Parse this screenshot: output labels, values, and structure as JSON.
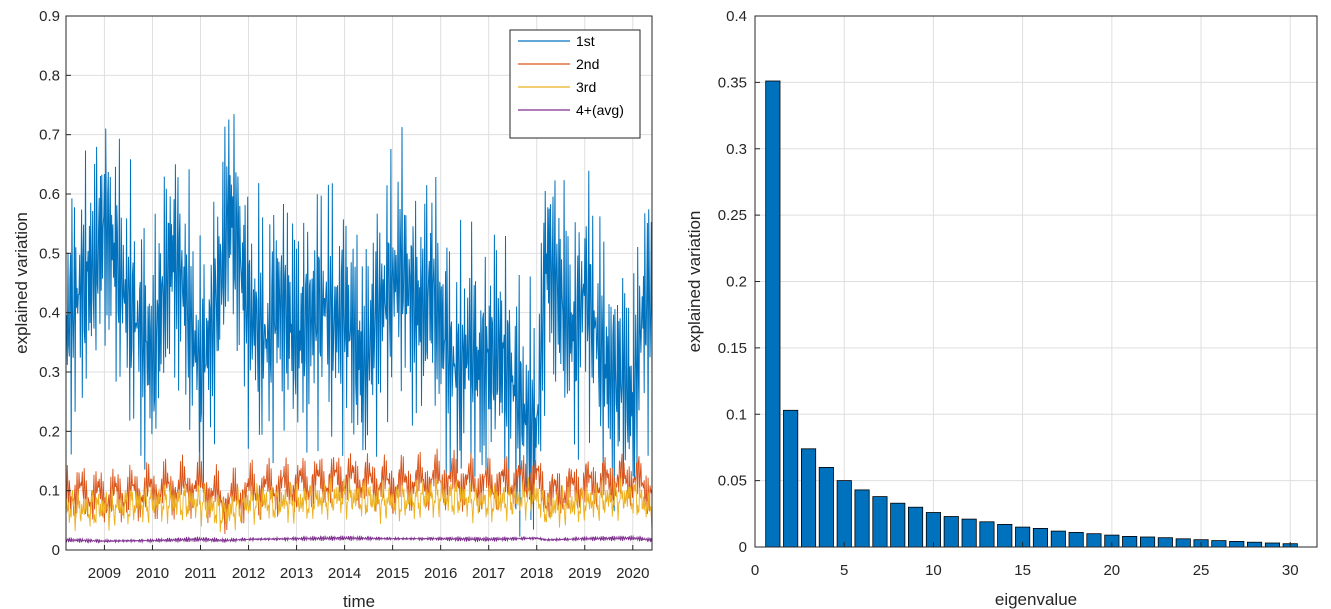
{
  "chart_data": [
    {
      "type": "line",
      "title": "",
      "xlabel": "time",
      "ylabel": "explained variation",
      "xlim": [
        2008.2,
        2020.4
      ],
      "ylim": [
        0,
        0.9
      ],
      "grid": true,
      "legend_position": "top-right",
      "xticks": [
        {
          "value": 2009,
          "label": "2009"
        },
        {
          "value": 2010,
          "label": "2010"
        },
        {
          "value": 2011,
          "label": "2011"
        },
        {
          "value": 2012,
          "label": "2012"
        },
        {
          "value": 2013,
          "label": "2013"
        },
        {
          "value": 2014,
          "label": "2014"
        },
        {
          "value": 2015,
          "label": "2015"
        },
        {
          "value": 2016,
          "label": "2016"
        },
        {
          "value": 2017,
          "label": "2017"
        },
        {
          "value": 2018,
          "label": "2018"
        },
        {
          "value": 2019,
          "label": "2019"
        },
        {
          "value": 2020,
          "label": "2020"
        }
      ],
      "yticks": [
        {
          "value": 0,
          "label": "0"
        },
        {
          "value": 0.1,
          "label": "0.1"
        },
        {
          "value": 0.2,
          "label": "0.2"
        },
        {
          "value": 0.3,
          "label": "0.3"
        },
        {
          "value": 0.4,
          "label": "0.4"
        },
        {
          "value": 0.5,
          "label": "0.5"
        },
        {
          "value": 0.6,
          "label": "0.6"
        },
        {
          "value": 0.7,
          "label": "0.7"
        },
        {
          "value": 0.8,
          "label": "0.8"
        },
        {
          "value": 0.9,
          "label": "0.9"
        }
      ],
      "series": [
        {
          "name": "1st",
          "color": "#0072BD",
          "x": [
            2008.2,
            2008.4,
            2008.6,
            2008.8,
            2009.0,
            2009.2,
            2009.4,
            2009.6,
            2009.8,
            2010.0,
            2010.2,
            2010.4,
            2010.6,
            2010.8,
            2011.0,
            2011.2,
            2011.4,
            2011.6,
            2011.8,
            2012.0,
            2012.2,
            2012.4,
            2012.6,
            2012.8,
            2013.0,
            2013.2,
            2013.4,
            2013.6,
            2013.8,
            2014.0,
            2014.2,
            2014.4,
            2014.6,
            2014.8,
            2015.0,
            2015.2,
            2015.4,
            2015.6,
            2015.8,
            2016.0,
            2016.2,
            2016.4,
            2016.6,
            2016.8,
            2017.0,
            2017.2,
            2017.4,
            2017.6,
            2017.8,
            2018.0,
            2018.2,
            2018.4,
            2018.6,
            2018.8,
            2019.0,
            2019.2,
            2019.4,
            2019.6,
            2019.8,
            2020.0,
            2020.2,
            2020.4
          ],
          "values": [
            0.38,
            0.42,
            0.45,
            0.48,
            0.55,
            0.5,
            0.44,
            0.4,
            0.36,
            0.32,
            0.42,
            0.5,
            0.46,
            0.38,
            0.3,
            0.36,
            0.45,
            0.58,
            0.5,
            0.4,
            0.38,
            0.35,
            0.42,
            0.4,
            0.36,
            0.38,
            0.4,
            0.42,
            0.38,
            0.4,
            0.36,
            0.3,
            0.38,
            0.42,
            0.45,
            0.48,
            0.42,
            0.4,
            0.45,
            0.38,
            0.32,
            0.3,
            0.35,
            0.3,
            0.32,
            0.34,
            0.3,
            0.26,
            0.22,
            0.2,
            0.5,
            0.45,
            0.4,
            0.35,
            0.45,
            0.38,
            0.32,
            0.28,
            0.3,
            0.24,
            0.4,
            0.42
          ]
        },
        {
          "name": "2nd",
          "color": "#D95319",
          "x": [
            2008.2,
            2009.0,
            2010.0,
            2011.0,
            2011.5,
            2012.0,
            2013.0,
            2014.0,
            2015.0,
            2016.0,
            2017.0,
            2018.0,
            2018.2,
            2019.0,
            2020.0,
            2020.4
          ],
          "values": [
            0.1,
            0.09,
            0.1,
            0.11,
            0.08,
            0.1,
            0.11,
            0.12,
            0.11,
            0.12,
            0.11,
            0.12,
            0.09,
            0.11,
            0.12,
            0.1
          ]
        },
        {
          "name": "3rd",
          "color": "#EDB120",
          "x": [
            2008.2,
            2009.0,
            2010.0,
            2011.0,
            2011.5,
            2012.0,
            2013.0,
            2014.0,
            2015.0,
            2016.0,
            2017.0,
            2018.0,
            2018.2,
            2019.0,
            2020.0,
            2020.4
          ],
          "values": [
            0.07,
            0.07,
            0.08,
            0.08,
            0.06,
            0.08,
            0.08,
            0.09,
            0.08,
            0.09,
            0.08,
            0.09,
            0.07,
            0.08,
            0.09,
            0.07
          ]
        },
        {
          "name": "4+(avg)",
          "color": "#7E2F8E",
          "x": [
            2008.2,
            2009.0,
            2010.0,
            2011.0,
            2011.5,
            2012.0,
            2013.0,
            2014.0,
            2015.0,
            2016.0,
            2017.0,
            2018.0,
            2018.2,
            2019.0,
            2020.0,
            2020.4
          ],
          "values": [
            0.017,
            0.015,
            0.016,
            0.018,
            0.016,
            0.018,
            0.019,
            0.02,
            0.019,
            0.019,
            0.018,
            0.02,
            0.017,
            0.019,
            0.02,
            0.017
          ]
        }
      ]
    },
    {
      "type": "bar",
      "title": "",
      "xlabel": "eigenvalue",
      "ylabel": "explained variation",
      "xlim": [
        0,
        31.5
      ],
      "ylim": [
        0,
        0.4
      ],
      "grid": true,
      "bar_color": "#0072BD",
      "xticks": [
        {
          "value": 0,
          "label": "0"
        },
        {
          "value": 5,
          "label": "5"
        },
        {
          "value": 10,
          "label": "10"
        },
        {
          "value": 15,
          "label": "15"
        },
        {
          "value": 20,
          "label": "20"
        },
        {
          "value": 25,
          "label": "25"
        },
        {
          "value": 30,
          "label": "30"
        }
      ],
      "yticks": [
        {
          "value": 0,
          "label": "0"
        },
        {
          "value": 0.05,
          "label": "0.05"
        },
        {
          "value": 0.1,
          "label": "0.1"
        },
        {
          "value": 0.15,
          "label": "0.15"
        },
        {
          "value": 0.2,
          "label": "0.2"
        },
        {
          "value": 0.25,
          "label": "0.25"
        },
        {
          "value": 0.3,
          "label": "0.3"
        },
        {
          "value": 0.35,
          "label": "0.35"
        },
        {
          "value": 0.4,
          "label": "0.4"
        }
      ],
      "categories": [
        1,
        2,
        3,
        4,
        5,
        6,
        7,
        8,
        9,
        10,
        11,
        12,
        13,
        14,
        15,
        16,
        17,
        18,
        19,
        20,
        21,
        22,
        23,
        24,
        25,
        26,
        27,
        28,
        29,
        30
      ],
      "values": [
        0.351,
        0.103,
        0.074,
        0.06,
        0.05,
        0.043,
        0.038,
        0.033,
        0.03,
        0.026,
        0.023,
        0.021,
        0.019,
        0.017,
        0.015,
        0.014,
        0.012,
        0.011,
        0.01,
        0.009,
        0.008,
        0.0075,
        0.007,
        0.0062,
        0.0055,
        0.0048,
        0.0042,
        0.0036,
        0.003,
        0.0025
      ]
    }
  ]
}
